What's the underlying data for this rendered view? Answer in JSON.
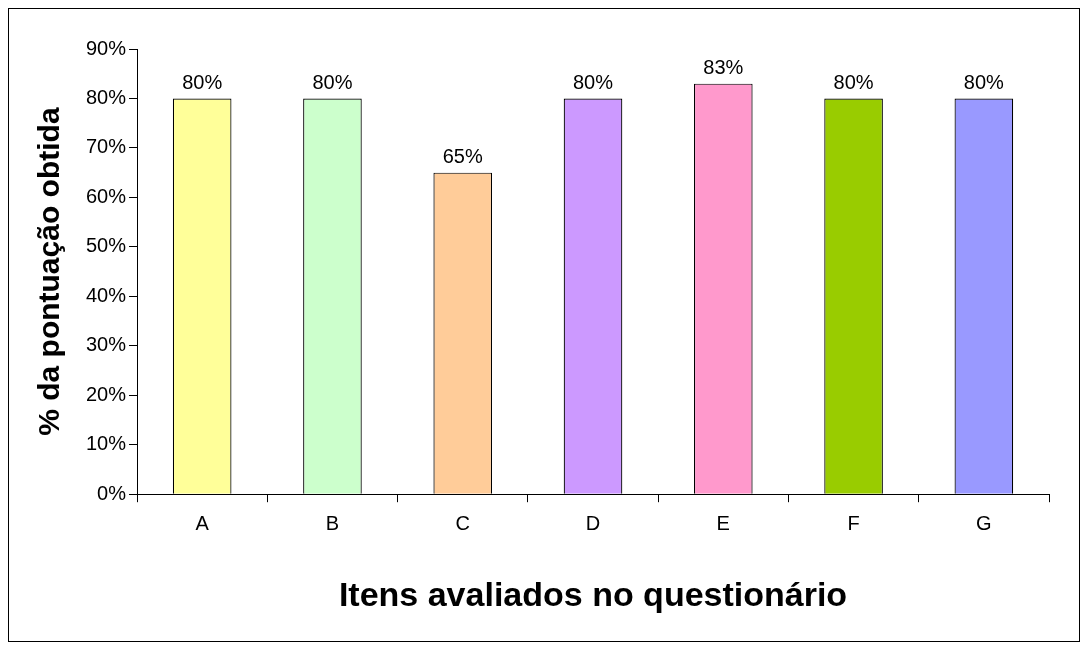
{
  "chart_data": {
    "type": "bar",
    "xlabel": "Itens avaliados no questionário",
    "ylabel": "% da pontuação obtida",
    "categories": [
      "A",
      "B",
      "C",
      "D",
      "E",
      "F",
      "G"
    ],
    "values": [
      80,
      80,
      65,
      80,
      83,
      80,
      80
    ],
    "colors": [
      "#ffff99",
      "#ccffcc",
      "#ffcc99",
      "#cc99ff",
      "#ff99cc",
      "#99cc00",
      "#9999ff"
    ],
    "value_labels": [
      "80%",
      "80%",
      "65%",
      "80%",
      "83%",
      "80%",
      "80%"
    ],
    "ylim": [
      0,
      90
    ],
    "yticks": [
      {
        "value": 0,
        "label": "0%"
      },
      {
        "value": 10,
        "label": "10%"
      },
      {
        "value": 20,
        "label": "20%"
      },
      {
        "value": 30,
        "label": "30%"
      },
      {
        "value": 40,
        "label": "40%"
      },
      {
        "value": 50,
        "label": "50%"
      },
      {
        "value": 60,
        "label": "60%"
      },
      {
        "value": 70,
        "label": "70%"
      },
      {
        "value": 80,
        "label": "80%"
      },
      {
        "value": 90,
        "label": "90%"
      }
    ],
    "grid": false,
    "legend": false
  }
}
